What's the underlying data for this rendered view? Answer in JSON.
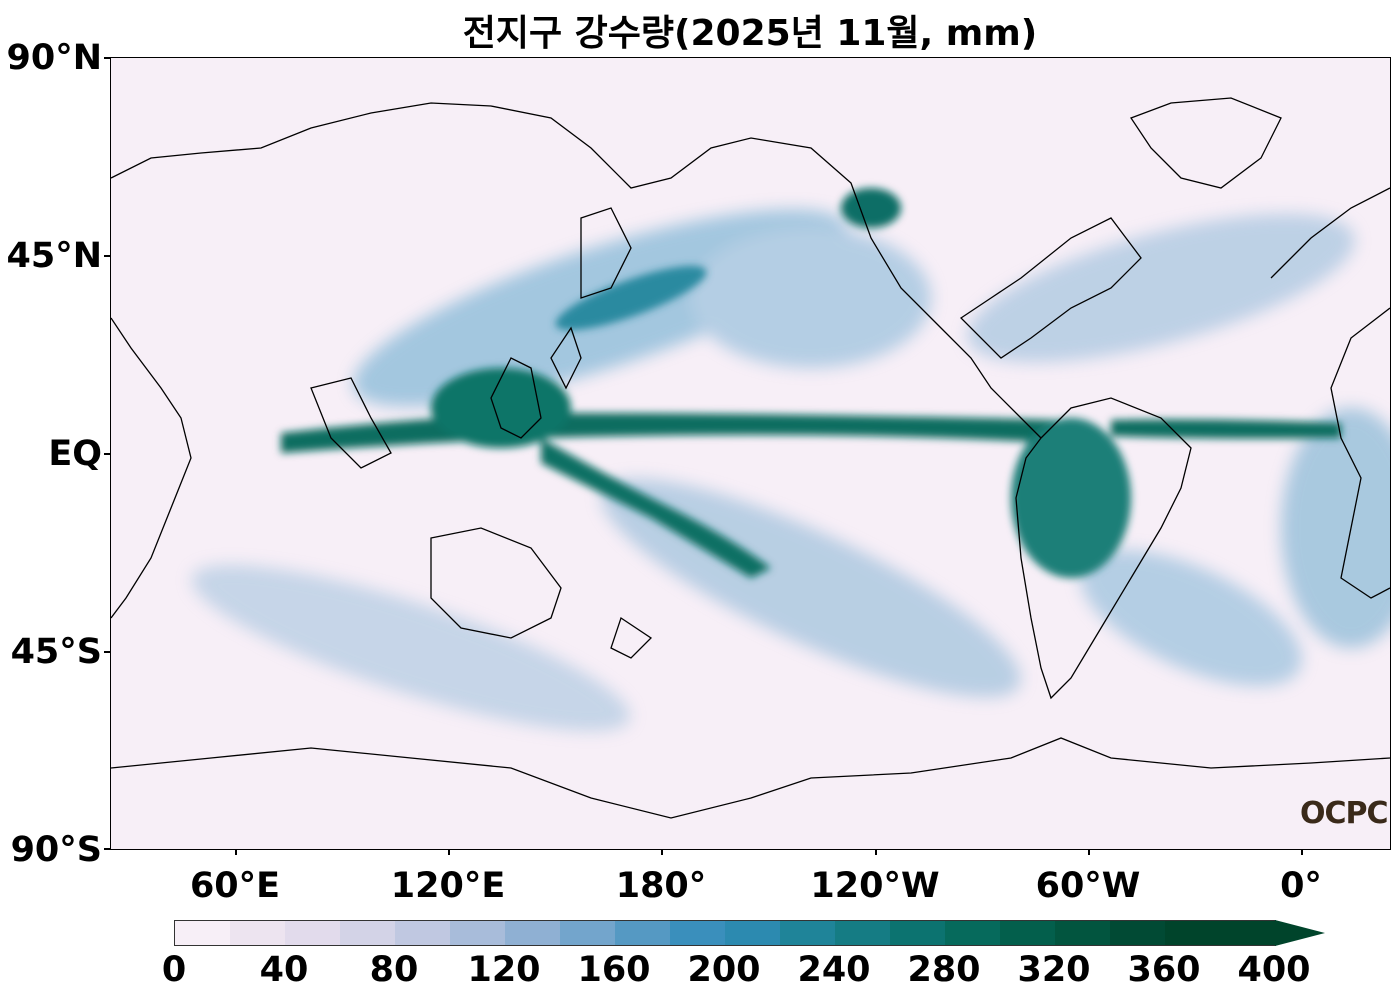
{
  "title": "전지구 강수량(2025년 11월, mm)",
  "logo": "OCPC",
  "y_axis": {
    "labels": [
      "90°N",
      "45°N",
      "EQ",
      "45°S",
      "90°S"
    ],
    "values": [
      90,
      45,
      0,
      -45,
      -90
    ]
  },
  "x_axis": {
    "labels": [
      "60°E",
      "120°E",
      "180°",
      "120°W",
      "60°W",
      "0°"
    ],
    "longitudes": [
      60,
      120,
      180,
      240,
      300,
      360
    ]
  },
  "colorbar": {
    "labels": [
      "0",
      "40",
      "80",
      "120",
      "160",
      "200",
      "240",
      "280",
      "320",
      "360",
      "400"
    ],
    "values": [
      0,
      40,
      80,
      120,
      160,
      200,
      240,
      280,
      320,
      360,
      400
    ],
    "extend": "max",
    "colors": [
      "#f7eff7",
      "#ede4f0",
      "#e2dbec",
      "#d3d3e7",
      "#c0c8e1",
      "#a8bcda",
      "#8fb0d3",
      "#73a5cc",
      "#5599c3",
      "#3a8fbc",
      "#2c8ab0",
      "#1f8499",
      "#157c84",
      "#0c7370",
      "#066a5c",
      "#035f4c",
      "#02553f",
      "#014a34",
      "#00442b",
      "#00442b"
    ]
  },
  "map": {
    "lon_range": [
      24,
      384
    ],
    "lat_range": [
      -90,
      90
    ],
    "central_longitude": 204
  }
}
